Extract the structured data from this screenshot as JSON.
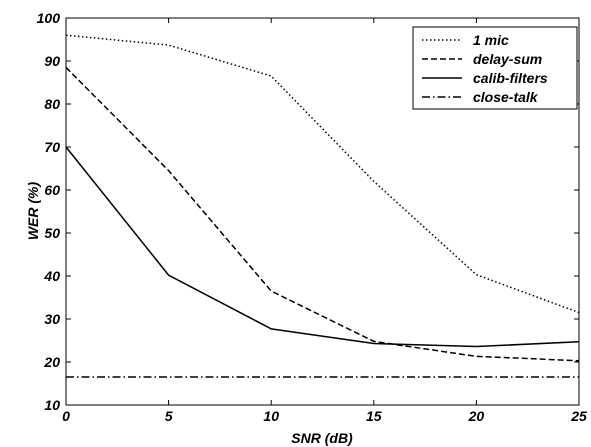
{
  "chart_data": {
    "type": "line",
    "xlabel": "SNR (dB)",
    "ylabel": "WER (%)",
    "xlim": [
      0,
      25
    ],
    "ylim": [
      10,
      100
    ],
    "xticks": [
      0,
      5,
      10,
      15,
      20,
      25
    ],
    "yticks": [
      10,
      20,
      30,
      40,
      50,
      60,
      70,
      80,
      90,
      100
    ],
    "grid": false,
    "legend_position": "top-right",
    "x": [
      0,
      5,
      10,
      15,
      20,
      25
    ],
    "series": [
      {
        "name": "1 mic",
        "style": "dotted",
        "values": [
          96,
          93.7,
          86.5,
          62,
          40.3,
          31.5
        ]
      },
      {
        "name": "delay-sum",
        "style": "dashed",
        "values": [
          88.5,
          64.5,
          36.5,
          24.8,
          21.3,
          20.3
        ]
      },
      {
        "name": "calib-filters",
        "style": "solid",
        "values": [
          70,
          40.2,
          27.7,
          24.3,
          23.6,
          24.7
        ]
      },
      {
        "name": "close-talk",
        "style": "dashdot",
        "values": [
          16.5,
          16.5,
          16.5,
          16.5,
          16.5,
          16.5
        ]
      }
    ]
  }
}
